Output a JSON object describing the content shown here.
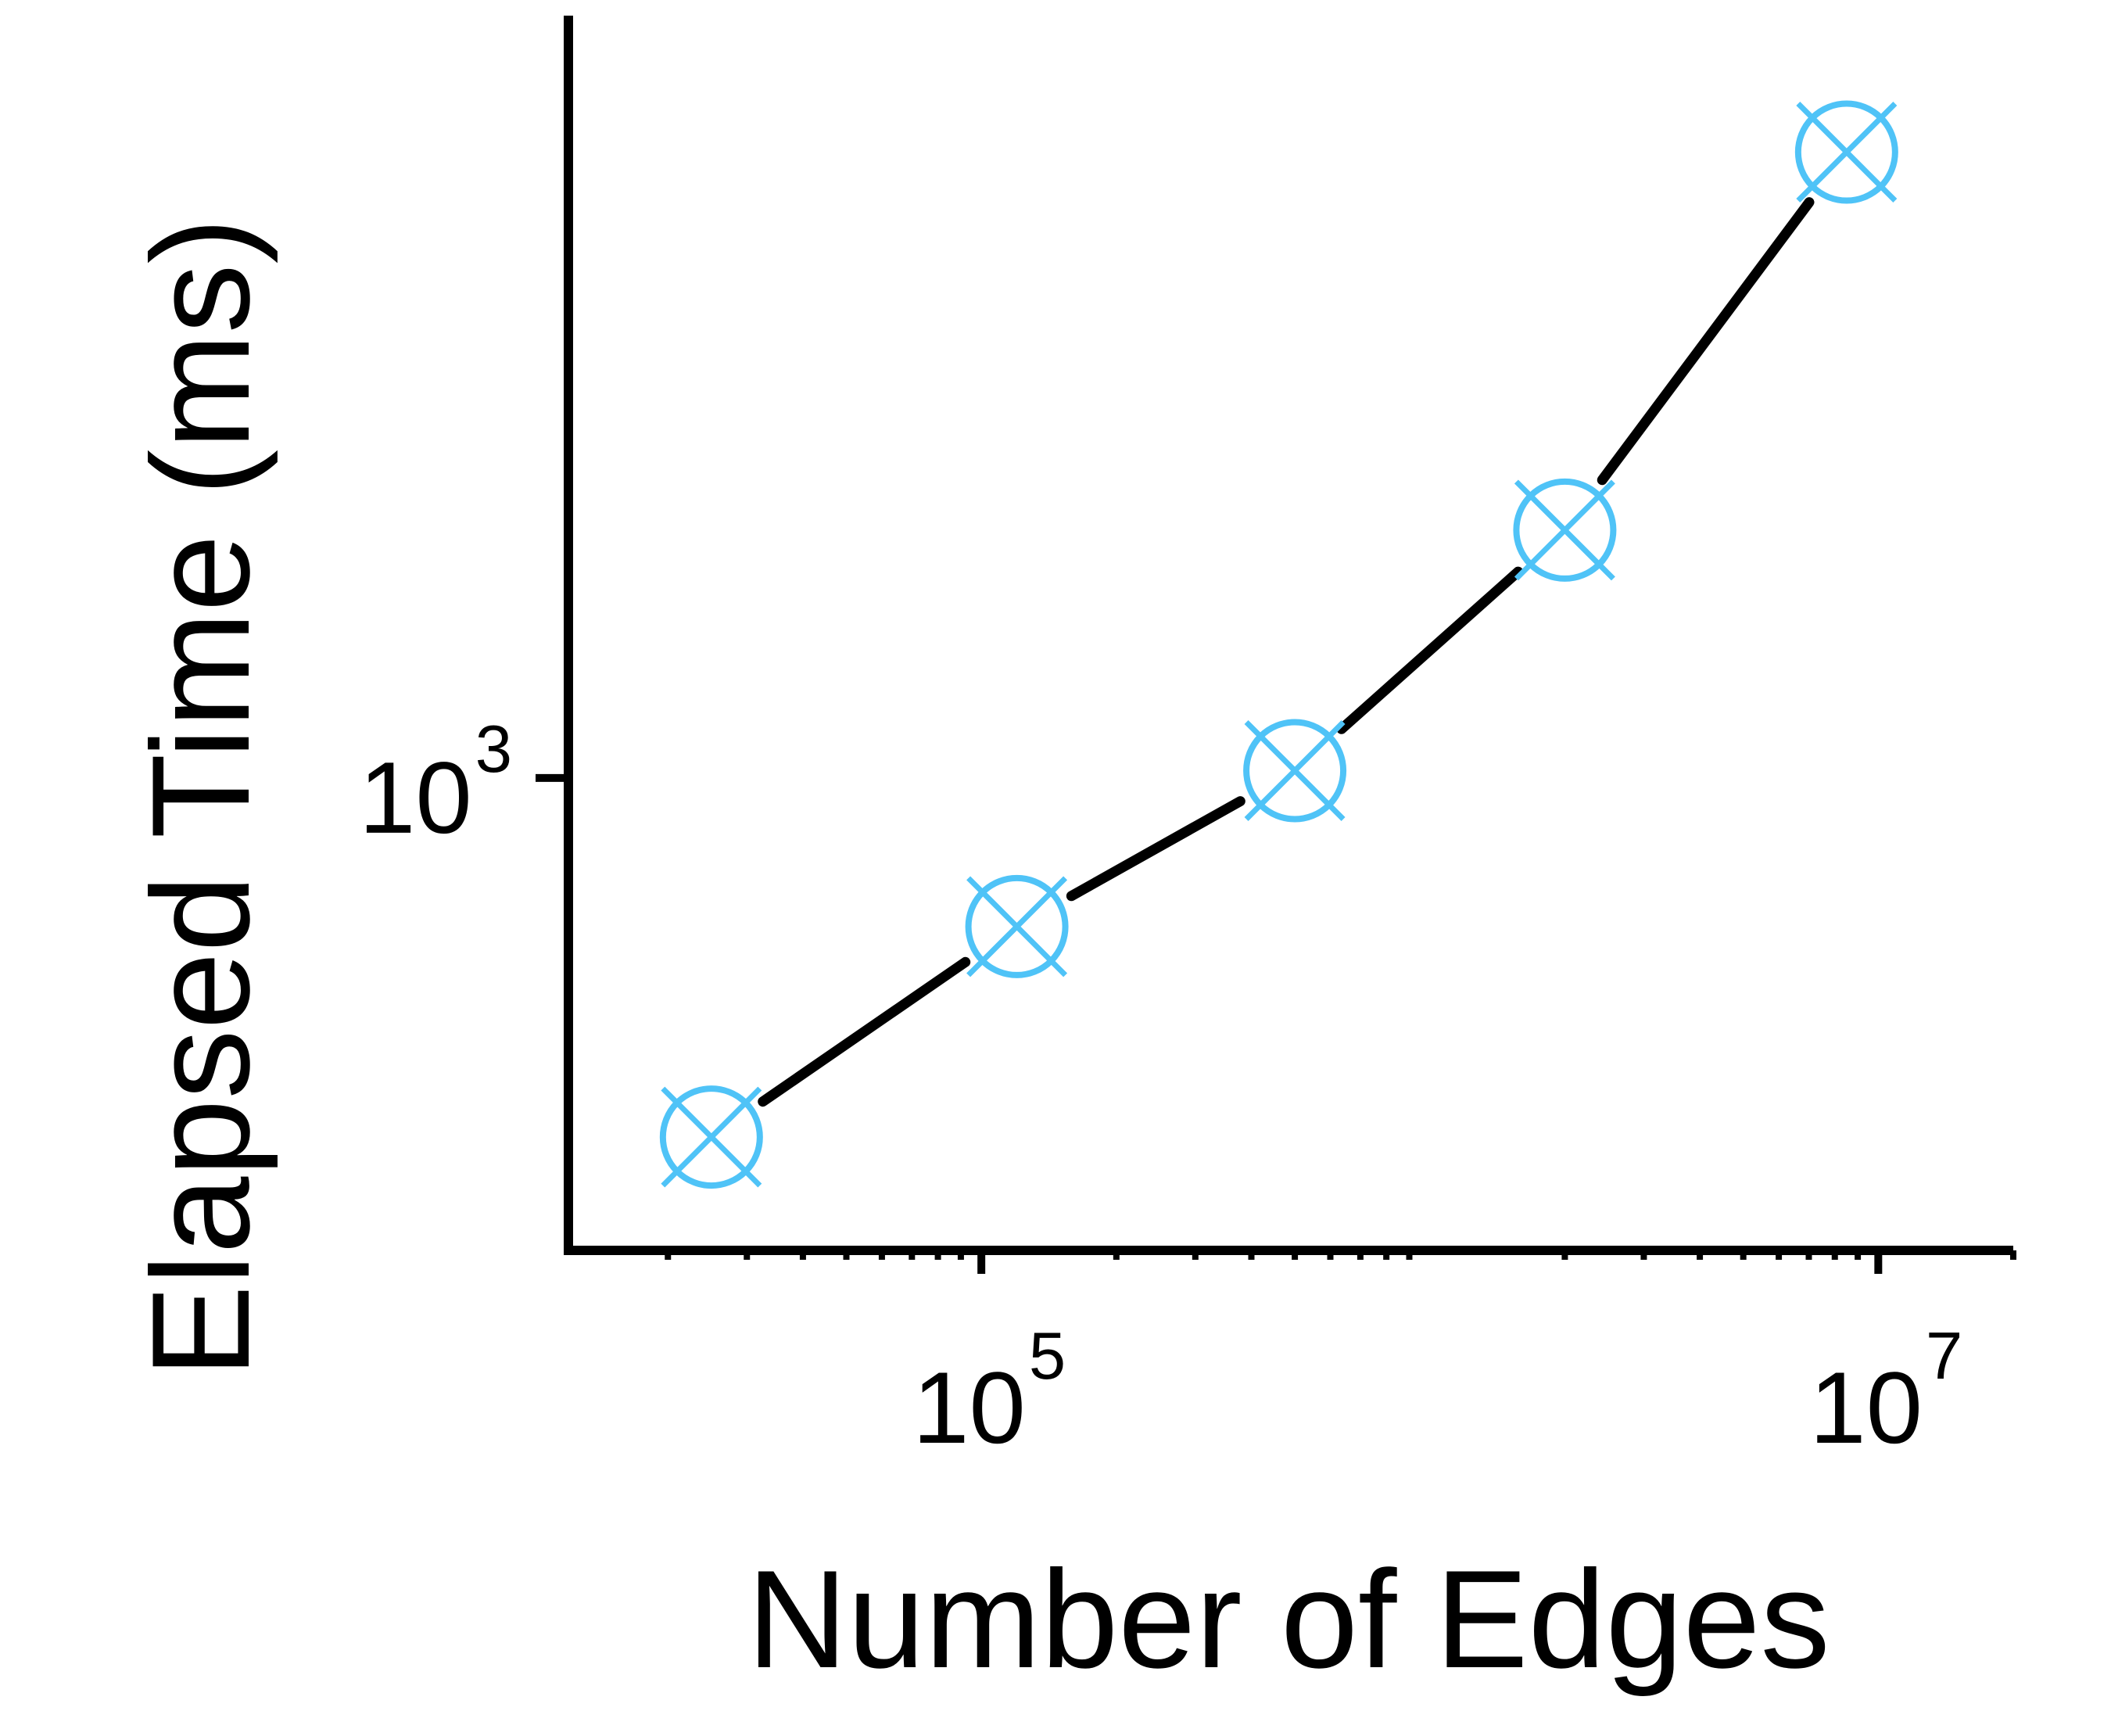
{
  "chart_data": {
    "type": "line",
    "xlabel": "Number of Edges",
    "ylabel": "Elapsed Time (ms)",
    "x_scale": "log",
    "y_scale": "log",
    "xlim": [
      12000,
      20000000
    ],
    "ylim": [
      280,
      7800
    ],
    "x_ticks": [
      {
        "base": "10",
        "exp": "5",
        "value": 100000
      },
      {
        "base": "10",
        "exp": "7",
        "value": 10000000
      }
    ],
    "y_ticks": [
      {
        "base": "10",
        "exp": "3",
        "value": 1000
      }
    ],
    "grid": false,
    "line_color": "#000000",
    "marker_color": "#4FC3F7",
    "marker": "circle-with-x",
    "series": [
      {
        "x": [
          25000,
          120000,
          500000,
          2000000,
          8500000
        ],
        "y": [
          380,
          670,
          1020,
          1950,
          5400
        ]
      }
    ]
  }
}
